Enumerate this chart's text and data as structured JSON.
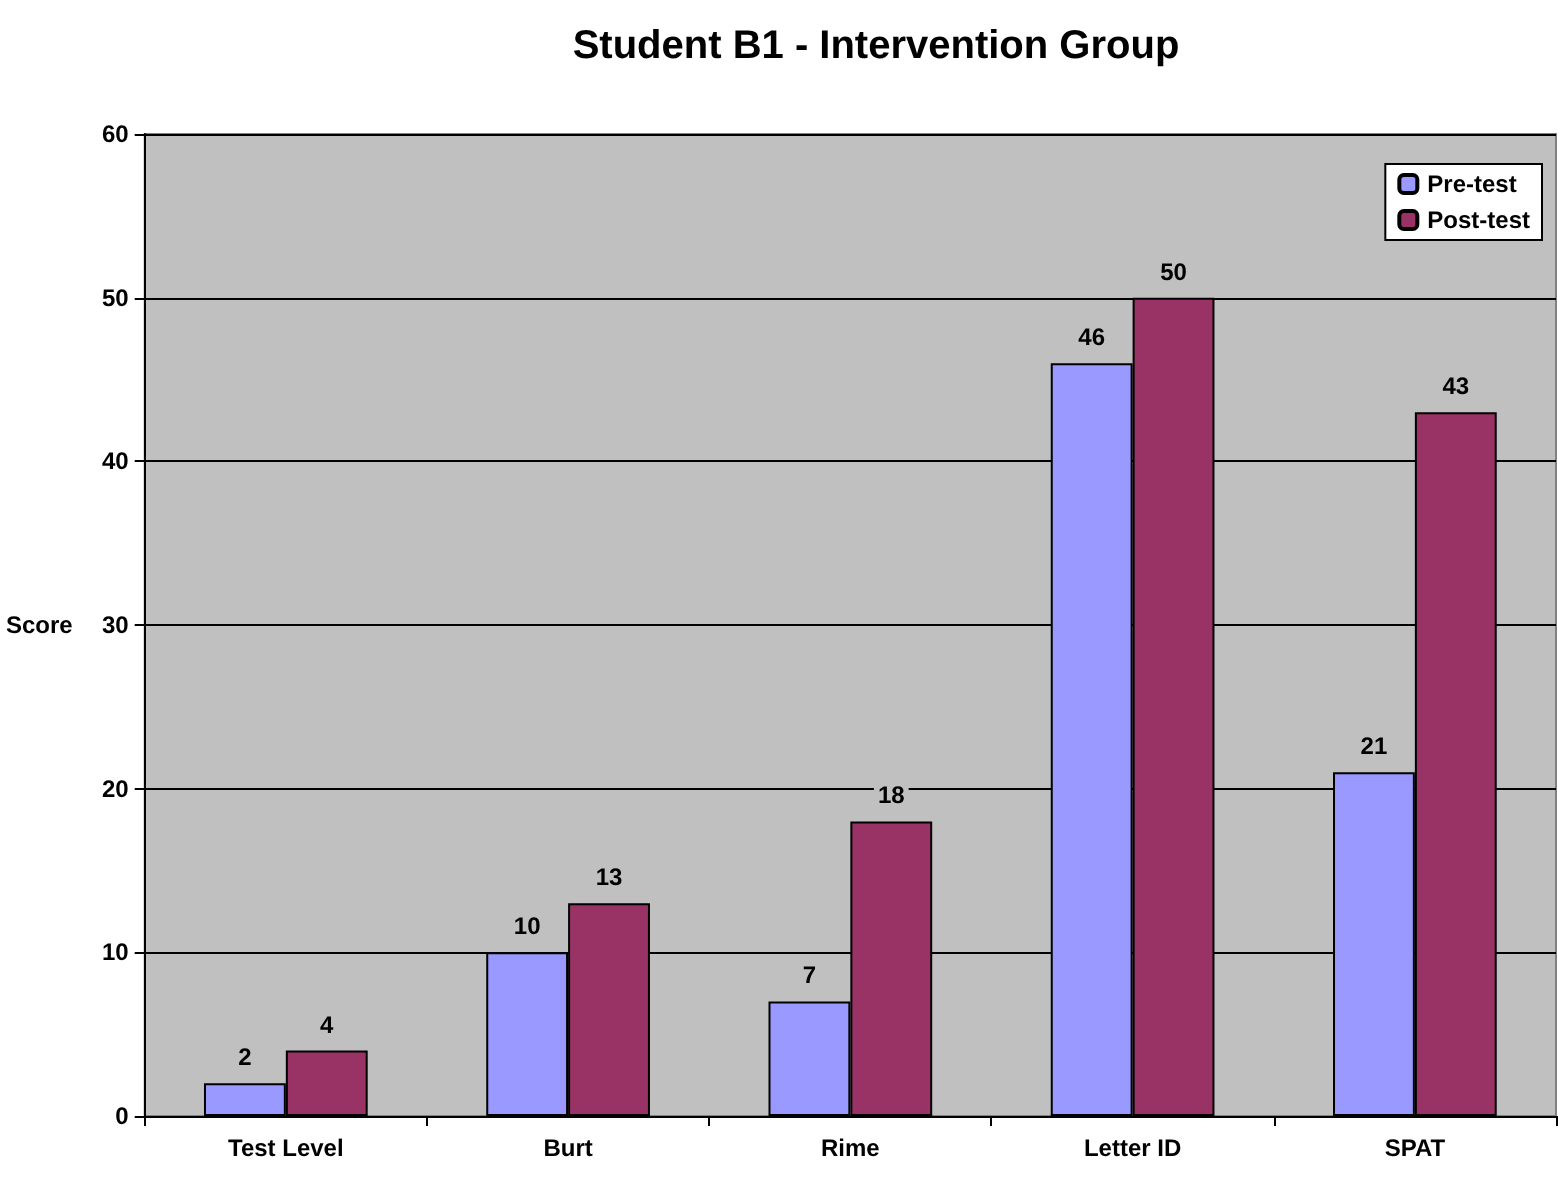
{
  "chart_data": {
    "type": "bar",
    "title": "Student B1 - Intervention Group",
    "ylabel": "Score",
    "categories": [
      "Test Level",
      "Burt",
      "Rime",
      "Letter ID",
      "SPAT"
    ],
    "series": [
      {
        "name": "Pre-test",
        "color": "#9999ff",
        "values": [
          2,
          10,
          7,
          46,
          21
        ]
      },
      {
        "name": "Post-test",
        "color": "#993366",
        "values": [
          4,
          13,
          18,
          50,
          43
        ]
      }
    ],
    "ylim": [
      0,
      60
    ],
    "yticks": [
      0,
      10,
      20,
      30,
      40,
      50,
      60
    ],
    "grid": "y",
    "legend": "top right",
    "data_labels": true
  }
}
